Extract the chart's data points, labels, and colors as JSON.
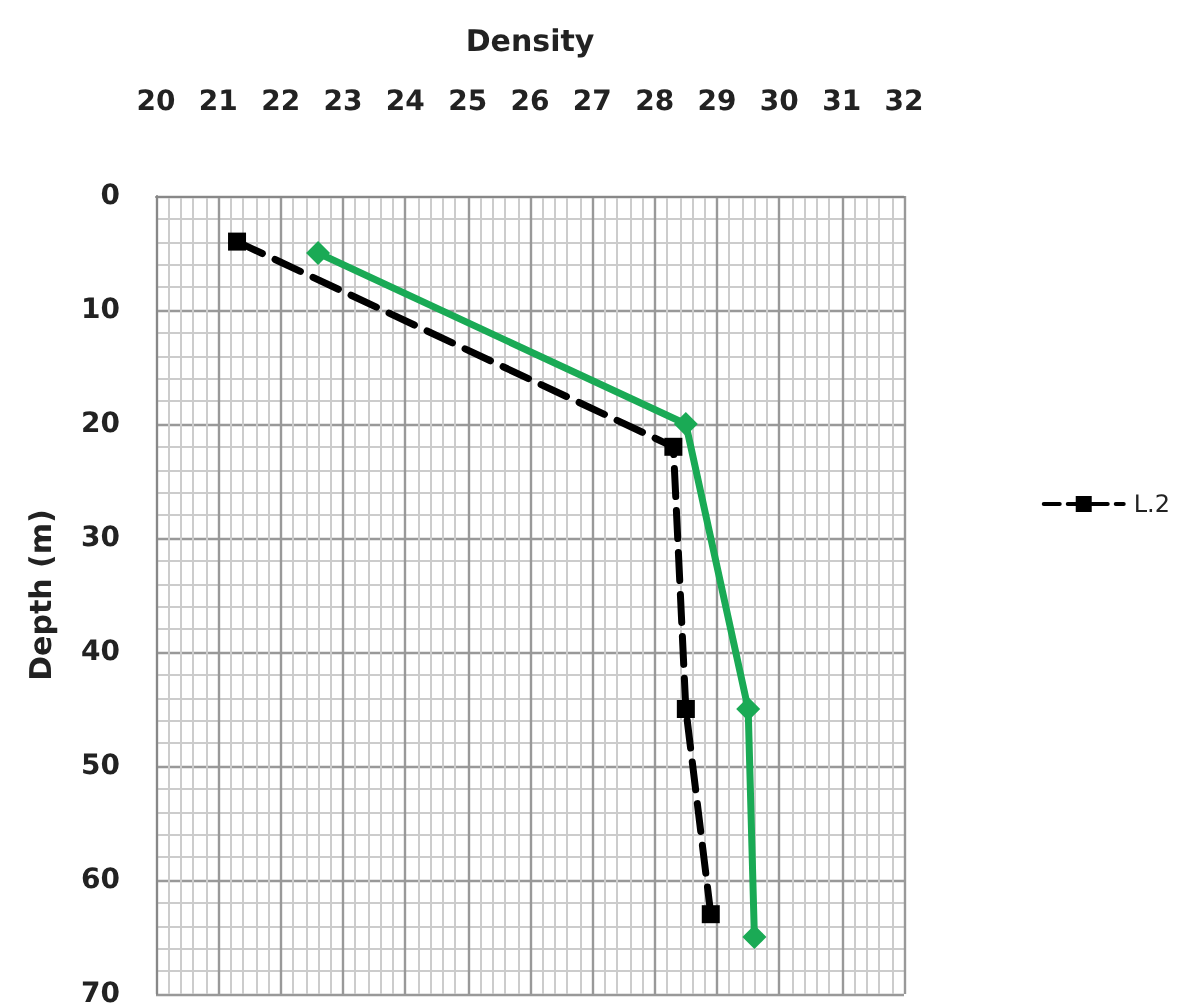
{
  "chart_data": {
    "type": "line",
    "xlabel": "Density",
    "ylabel": "Depth (m)",
    "xlim": [
      20,
      32
    ],
    "xticks": [
      20,
      21,
      22,
      23,
      24,
      25,
      26,
      27,
      28,
      29,
      30,
      31,
      32
    ],
    "ylim": [
      70,
      0
    ],
    "yticks": [
      0,
      10,
      20,
      30,
      40,
      50,
      60,
      70
    ],
    "grid": true,
    "legend": "right",
    "series": [
      {
        "color": "#1aaa55",
        "marker": "diamond",
        "line_style": "solid",
        "x": [
          22.6,
          28.5,
          29.5,
          29.6
        ],
        "values": [
          5,
          20,
          45,
          65
        ]
      },
      {
        "name": "L.2",
        "color": "#000000",
        "marker": "square",
        "line_style": "dashed",
        "x": [
          21.3,
          28.3,
          28.5,
          28.9
        ],
        "values": [
          4,
          22,
          45,
          63
        ]
      }
    ]
  }
}
